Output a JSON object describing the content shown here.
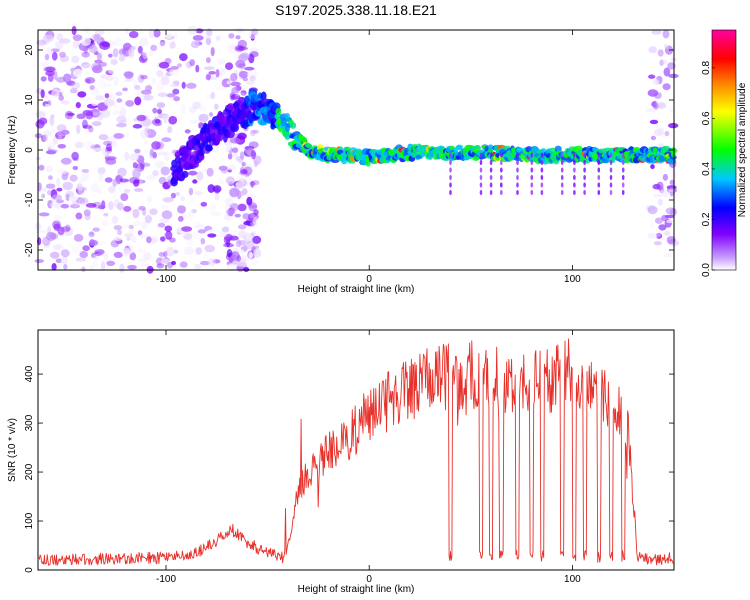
{
  "title": "S197.2025.338.11.18.E21",
  "chart_data": [
    {
      "type": "heatmap",
      "xlabel": "Height of straight line (km)",
      "ylabel": "Frequency (Hz)",
      "xlim": [
        -163,
        150
      ],
      "ylim": [
        -24,
        24
      ],
      "x_ticks": [
        -100,
        0,
        100
      ],
      "x_tick_labels": [
        "-100",
        "0",
        "100"
      ],
      "y_ticks": [
        -20,
        -10,
        0,
        10,
        20
      ],
      "y_tick_labels": [
        "-20",
        "-10",
        "0",
        "10",
        "20"
      ],
      "colorbar": {
        "label": "Normalized spectral amplitude",
        "range": [
          0,
          0.95
        ],
        "ticks": [
          0.0,
          0.2,
          0.4,
          0.6,
          0.8
        ],
        "tick_labels": [
          "0.0",
          "0.2",
          "0.4",
          "0.6",
          "0.8"
        ],
        "colors": [
          "#ffffff",
          "#c8a0ff",
          "#8000ff",
          "#0000ff",
          "#00c8ff",
          "#00ff00",
          "#ffff00",
          "#ff8000",
          "#ff0000",
          "#ff00a0"
        ]
      },
      "ridge": {
        "x": [
          -95,
          -88,
          -80,
          -72,
          -64,
          -56,
          -48,
          -42,
          -38,
          -30,
          -20,
          -10,
          0,
          10,
          20,
          40,
          60,
          80,
          100,
          120,
          140,
          150
        ],
        "freq": [
          -4,
          -1,
          2,
          5,
          7,
          9,
          7,
          6,
          3,
          0,
          -1,
          -1,
          -1.5,
          -1,
          -0.5,
          -0.5,
          -0.5,
          -1,
          -1,
          -1,
          -1,
          -1
        ]
      }
    },
    {
      "type": "line",
      "xlabel": "Height of straight line (km)",
      "ylabel": "SNR (10 * v/v)",
      "xlim": [
        -163,
        150
      ],
      "ylim": [
        0,
        490
      ],
      "x_ticks": [
        -100,
        0,
        100
      ],
      "x_tick_labels": [
        "-100",
        "0",
        "100"
      ],
      "y_ticks": [
        0,
        100,
        200,
        300,
        400
      ],
      "y_tick_labels": [
        "0",
        "100",
        "200",
        "300",
        "400"
      ],
      "color": "#e8302a",
      "envelope": {
        "x": [
          -163,
          -100,
          -85,
          -75,
          -68,
          -60,
          -50,
          -42,
          -38,
          -35,
          -30,
          -20,
          -10,
          0,
          10,
          20,
          30,
          40,
          50,
          60,
          70,
          80,
          90,
          100,
          105,
          110,
          120,
          125,
          128,
          132,
          140,
          150
        ],
        "y": [
          20,
          25,
          35,
          60,
          85,
          55,
          35,
          25,
          80,
          170,
          190,
          240,
          270,
          320,
          345,
          375,
          385,
          395,
          400,
          390,
          390,
          390,
          390,
          410,
          395,
          390,
          325,
          320,
          260,
          30,
          20,
          25
        ]
      },
      "dropouts_km": [
        40,
        55,
        60,
        65,
        73,
        80,
        85,
        95,
        101,
        106,
        113,
        119,
        125
      ]
    }
  ]
}
